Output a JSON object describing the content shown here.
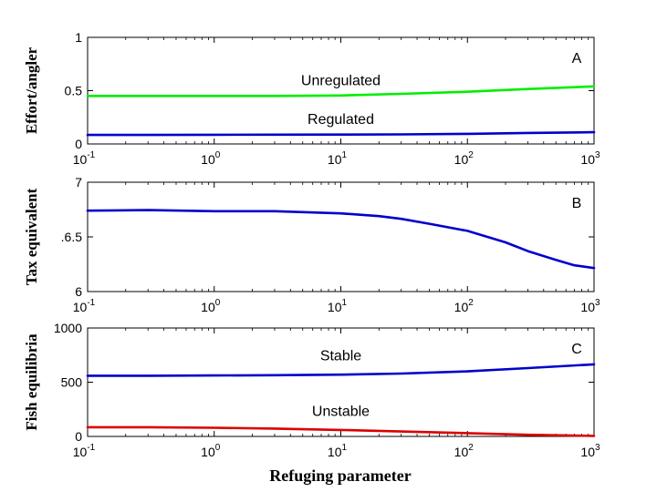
{
  "chart_data": [
    {
      "type": "line",
      "panel": "A",
      "ylabel": "Effort/angler",
      "xscale": "log",
      "xlim": [
        0.1,
        1000
      ],
      "ylim": [
        0,
        1
      ],
      "yticks": [
        0,
        0.5,
        1
      ],
      "ytick_labels": [
        "0",
        "0.5",
        "1"
      ],
      "grid": false,
      "series": [
        {
          "name": "Unregulated",
          "color": "#00ee00",
          "x": [
            0.1,
            0.3,
            1,
            3,
            10,
            30,
            100,
            300,
            1000
          ],
          "y": [
            0.45,
            0.45,
            0.45,
            0.45,
            0.455,
            0.47,
            0.49,
            0.515,
            0.54
          ]
        },
        {
          "name": "Regulated",
          "color": "#0000cc",
          "x": [
            0.1,
            0.3,
            1,
            3,
            10,
            30,
            100,
            300,
            1000
          ],
          "y": [
            0.085,
            0.085,
            0.086,
            0.087,
            0.088,
            0.09,
            0.095,
            0.103,
            0.11
          ]
        }
      ],
      "annotations": [
        {
          "text": "Unregulated",
          "x": 10,
          "y": 0.55
        },
        {
          "text": "Regulated",
          "x": 10,
          "y": 0.19
        }
      ]
    },
    {
      "type": "line",
      "panel": "B",
      "ylabel": "Tax equivalent",
      "xscale": "log",
      "xlim": [
        0.1,
        1000
      ],
      "ylim": [
        6,
        7
      ],
      "yticks": [
        6,
        6.5,
        7
      ],
      "ytick_labels": [
        "6",
        ".6.5",
        "7"
      ],
      "grid": false,
      "series": [
        {
          "color": "#0000cc",
          "x": [
            0.1,
            0.3,
            1,
            3,
            10,
            20,
            30,
            50,
            100,
            200,
            300,
            500,
            700,
            1000
          ],
          "y": [
            6.74,
            6.745,
            6.735,
            6.735,
            6.715,
            6.69,
            6.665,
            6.62,
            6.555,
            6.45,
            6.37,
            6.29,
            6.24,
            6.215
          ]
        }
      ],
      "annotations": []
    },
    {
      "type": "line",
      "panel": "C",
      "ylabel": "Fish equilibria",
      "xlabel": "Refuging parameter",
      "xscale": "log",
      "xlim": [
        0.1,
        1000
      ],
      "ylim": [
        0,
        1000
      ],
      "yticks": [
        0,
        500,
        1000
      ],
      "ytick_labels": [
        "0",
        "500",
        "1000"
      ],
      "grid": false,
      "series": [
        {
          "name": "Stable",
          "color": "#0000cc",
          "x": [
            0.1,
            0.3,
            1,
            3,
            10,
            30,
            100,
            300,
            1000
          ],
          "y": [
            560,
            560,
            562,
            565,
            570,
            580,
            600,
            630,
            665
          ]
        },
        {
          "name": "Unstable",
          "color": "#dd0000",
          "x": [
            0.1,
            0.3,
            1,
            3,
            10,
            30,
            100,
            300,
            1000
          ],
          "y": [
            85,
            85,
            80,
            72,
            60,
            45,
            30,
            15,
            5
          ]
        }
      ],
      "annotations": [
        {
          "text": "Stable",
          "x": 10,
          "y": 700
        },
        {
          "text": "Unstable",
          "x": 10,
          "y": 190
        }
      ]
    }
  ],
  "x_ticks": [
    0.1,
    1,
    10,
    100,
    1000
  ],
  "x_tick_labels": [
    {
      "base": "10",
      "exp": "-1"
    },
    {
      "base": "10",
      "exp": "0"
    },
    {
      "base": "10",
      "exp": "1"
    },
    {
      "base": "10",
      "exp": "2"
    },
    {
      "base": "10",
      "exp": "3"
    }
  ]
}
